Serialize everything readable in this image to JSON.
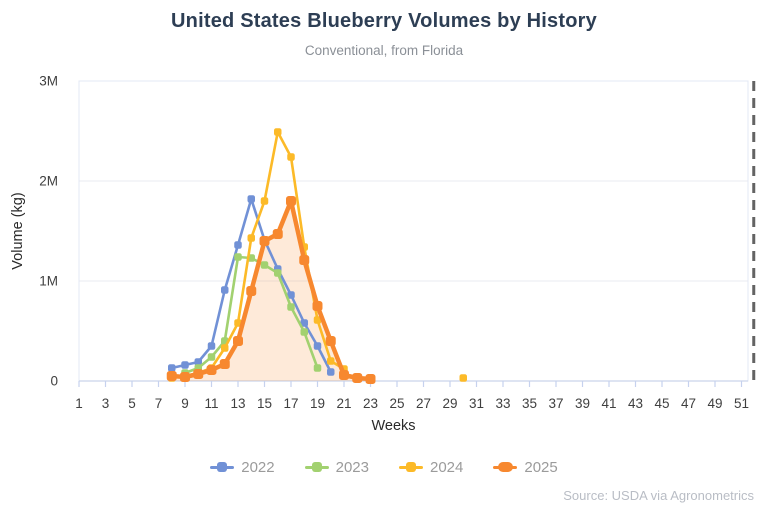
{
  "title": "United States Blueberry Volumes by History",
  "subtitle": "Conventional, from Florida",
  "source": "Source: USDA via Agronometrics",
  "colors": {
    "title": "#2d3e54",
    "subtitle": "#8b9097",
    "axis_text": "#3f3f3f",
    "grid": "#e9ebf2",
    "plot_border": "#e3e8f4",
    "axis_line": "#c9d4ea",
    "tick_mark": "#c6d2ee",
    "dashed_line": "#636363",
    "legend_label": "#9b9b9b",
    "source_text": "#b9bdc5"
  },
  "chart_data": {
    "type": "line",
    "title": "United States Blueberry Volumes by History",
    "subtitle": "Conventional, from Florida",
    "xlabel": "Weeks",
    "ylabel": "Volume (kg)",
    "xlim": [
      1,
      52
    ],
    "ylim": [
      0,
      3000000
    ],
    "x_ticks": [
      1,
      3,
      5,
      7,
      9,
      11,
      13,
      15,
      17,
      19,
      21,
      23,
      25,
      27,
      29,
      31,
      33,
      35,
      37,
      39,
      41,
      43,
      45,
      47,
      49,
      51
    ],
    "y_ticks": [
      {
        "value": 0,
        "label": "0"
      },
      {
        "value": 1000000,
        "label": "1M"
      },
      {
        "value": 2000000,
        "label": "2M"
      },
      {
        "value": 3000000,
        "label": "3M"
      }
    ],
    "grid": true,
    "legend_position": "bottom",
    "end_marker_week": 52,
    "series": [
      {
        "name": "2022",
        "color": "#7191d6",
        "line_width": 2.6,
        "marker_size": 7.5,
        "area_fill": false,
        "segments": [
          [
            [
              8,
              130000
            ],
            [
              9,
              160000
            ],
            [
              10,
              190000
            ],
            [
              11,
              350000
            ],
            [
              12,
              910000
            ],
            [
              13,
              1360000
            ],
            [
              14,
              1820000
            ],
            [
              15,
              1410000
            ],
            [
              16,
              1120000
            ],
            [
              17,
              860000
            ],
            [
              18,
              580000
            ],
            [
              19,
              350000
            ],
            [
              20,
              90000
            ]
          ]
        ]
      },
      {
        "name": "2023",
        "color": "#a2d170",
        "line_width": 2.6,
        "marker_size": 7.5,
        "area_fill": false,
        "segments": [
          [
            [
              9,
              80000
            ],
            [
              10,
              130000
            ],
            [
              11,
              240000
            ],
            [
              12,
              400000
            ],
            [
              13,
              1240000
            ],
            [
              14,
              1230000
            ],
            [
              15,
              1160000
            ],
            [
              16,
              1080000
            ],
            [
              17,
              740000
            ],
            [
              18,
              490000
            ],
            [
              19,
              130000
            ]
          ]
        ]
      },
      {
        "name": "2024",
        "color": "#fcba28",
        "line_width": 2.6,
        "marker_size": 7.5,
        "area_fill": false,
        "segments": [
          [
            [
              8,
              30000
            ],
            [
              9,
              50000
            ],
            [
              10,
              80000
            ],
            [
              11,
              130000
            ],
            [
              12,
              330000
            ],
            [
              13,
              580000
            ],
            [
              14,
              1430000
            ],
            [
              15,
              1800000
            ],
            [
              16,
              2490000
            ],
            [
              17,
              2240000
            ],
            [
              18,
              1340000
            ],
            [
              19,
              610000
            ],
            [
              20,
              200000
            ],
            [
              21,
              120000
            ]
          ],
          [
            [
              30,
              30000
            ]
          ]
        ]
      },
      {
        "name": "2025",
        "color": "#f7882f",
        "line_width": 4.5,
        "marker_size": 10,
        "area_fill": true,
        "fill_opacity": 0.18,
        "segments": [
          [
            [
              8,
              50000
            ],
            [
              9,
              40000
            ],
            [
              10,
              70000
            ],
            [
              11,
              110000
            ],
            [
              12,
              170000
            ],
            [
              13,
              400000
            ],
            [
              14,
              900000
            ],
            [
              15,
              1400000
            ],
            [
              16,
              1470000
            ],
            [
              17,
              1800000
            ],
            [
              18,
              1210000
            ],
            [
              19,
              750000
            ],
            [
              20,
              400000
            ],
            [
              21,
              60000
            ],
            [
              22,
              30000
            ],
            [
              23,
              20000
            ]
          ]
        ]
      }
    ]
  },
  "legend": {
    "items": [
      {
        "label": "2022"
      },
      {
        "label": "2023"
      },
      {
        "label": "2024"
      },
      {
        "label": "2025"
      }
    ]
  }
}
